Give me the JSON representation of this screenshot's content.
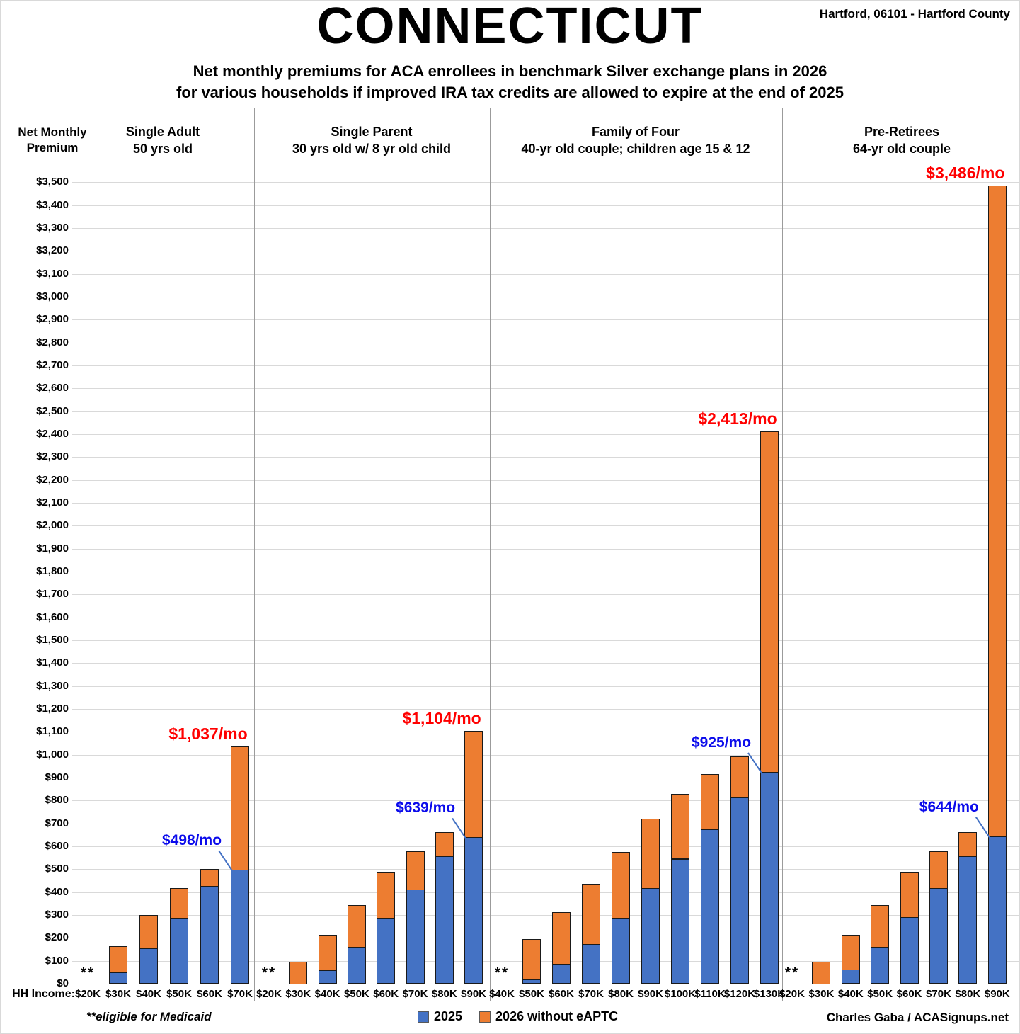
{
  "page": {
    "title": "CONNECTICUT",
    "location": "Hartford, 06101 - Hartford County",
    "subtitle_line1": "Net monthly premiums for ACA enrollees in benchmark Silver exchange plans in 2026",
    "subtitle_line2": "for various households if improved IRA tax credits are allowed to expire at the end of 2025",
    "y_axis_title": "Net Monthly\nPremium",
    "x_axis_title": "HH Income:",
    "medicaid_marker": "**",
    "footnote": "**eligible for Medicaid",
    "credit": "Charles Gaba / ACASignups.net"
  },
  "legend": [
    {
      "label": "2025",
      "color": "#4472C4"
    },
    {
      "label": "2026 without eAPTC",
      "color": "#ED7D31"
    }
  ],
  "colors": {
    "bar_2025": "#4472C4",
    "bar_2026": "#ED7D31",
    "bar_border": "#1A1A1A",
    "gridline": "#D9D9D9",
    "annotation_2025_text": "#0B0BEB",
    "annotation_2026_text": "#FF0000",
    "callout_line": "#4472C4",
    "divider": "#9B9B9B"
  },
  "chart_data": {
    "type": "bar",
    "title": "Net monthly premiums for ACA enrollees in benchmark Silver exchange plans in 2026 for various households if improved IRA tax credits are allowed to expire at the end of 2025",
    "ylabel": "Net Monthly Premium",
    "xlabel": "HH Income",
    "ylim": [
      0,
      3500
    ],
    "ytick_step": 100,
    "ytick_format": "$#,##0",
    "grid": true,
    "legend_position": "bottom",
    "series_names": [
      "2025",
      "2026 without eAPTC"
    ],
    "stacking_note": "Blue bar = 2025 net premium; orange extends from the 2025 value up to the 2026-without-eAPTC total. null = household eligible for Medicaid (marked **).",
    "groups": [
      {
        "label": "Single Adult",
        "sublabel": "50 yrs old",
        "categories": [
          "$20K",
          "$30K",
          "$40K",
          "$50K",
          "$60K",
          "$70K"
        ],
        "v2025": [
          null,
          50,
          155,
          287,
          427,
          498
        ],
        "v2026": [
          null,
          163,
          300,
          417,
          500,
          1037
        ],
        "annotation_2025": {
          "text": "$498/mo",
          "index": 5,
          "value": 498
        },
        "annotation_2026": {
          "text": "$1,037/mo",
          "index": 5,
          "value": 1037
        }
      },
      {
        "label": "Single Parent",
        "sublabel": "30 yrs old w/ 8 yr old child",
        "categories": [
          "$20K",
          "$30K",
          "$40K",
          "$50K",
          "$60K",
          "$70K",
          "$80K",
          "$90K"
        ],
        "v2025": [
          null,
          0,
          58,
          160,
          288,
          411,
          557,
          639
        ],
        "v2026": [
          null,
          97,
          215,
          345,
          490,
          580,
          663,
          1104
        ],
        "annotation_2025": {
          "text": "$639/mo",
          "index": 7,
          "value": 639
        },
        "annotation_2026": {
          "text": "$1,104/mo",
          "index": 7,
          "value": 1104
        }
      },
      {
        "label": "Family of Four",
        "sublabel": "40-yr old couple; children age 15 & 12",
        "categories": [
          "$40K",
          "$50K",
          "$60K",
          "$70K",
          "$80K",
          "$90K",
          "$100K",
          "$110K",
          "$120K",
          "$130K"
        ],
        "v2025": [
          null,
          20,
          87,
          173,
          286,
          418,
          546,
          674,
          815,
          925
        ],
        "v2026": [
          null,
          195,
          312,
          435,
          574,
          720,
          830,
          915,
          993,
          2413
        ],
        "annotation_2025": {
          "text": "$925/mo",
          "index": 9,
          "value": 925
        },
        "annotation_2026": {
          "text": "$2,413/mo",
          "index": 9,
          "value": 2413
        }
      },
      {
        "label": "Pre-Retirees",
        "sublabel": "64-yr old couple",
        "categories": [
          "$20K",
          "$30K",
          "$40K",
          "$50K",
          "$60K",
          "$70K",
          "$80K",
          "$90K"
        ],
        "v2025": [
          null,
          0,
          62,
          160,
          290,
          418,
          557,
          644
        ],
        "v2026": [
          null,
          97,
          215,
          345,
          490,
          580,
          663,
          3486
        ],
        "annotation_2025": {
          "text": "$644/mo",
          "index": 7,
          "value": 644
        },
        "annotation_2026": {
          "text": "$3,486/mo",
          "index": 7,
          "value": 3486
        }
      }
    ]
  }
}
